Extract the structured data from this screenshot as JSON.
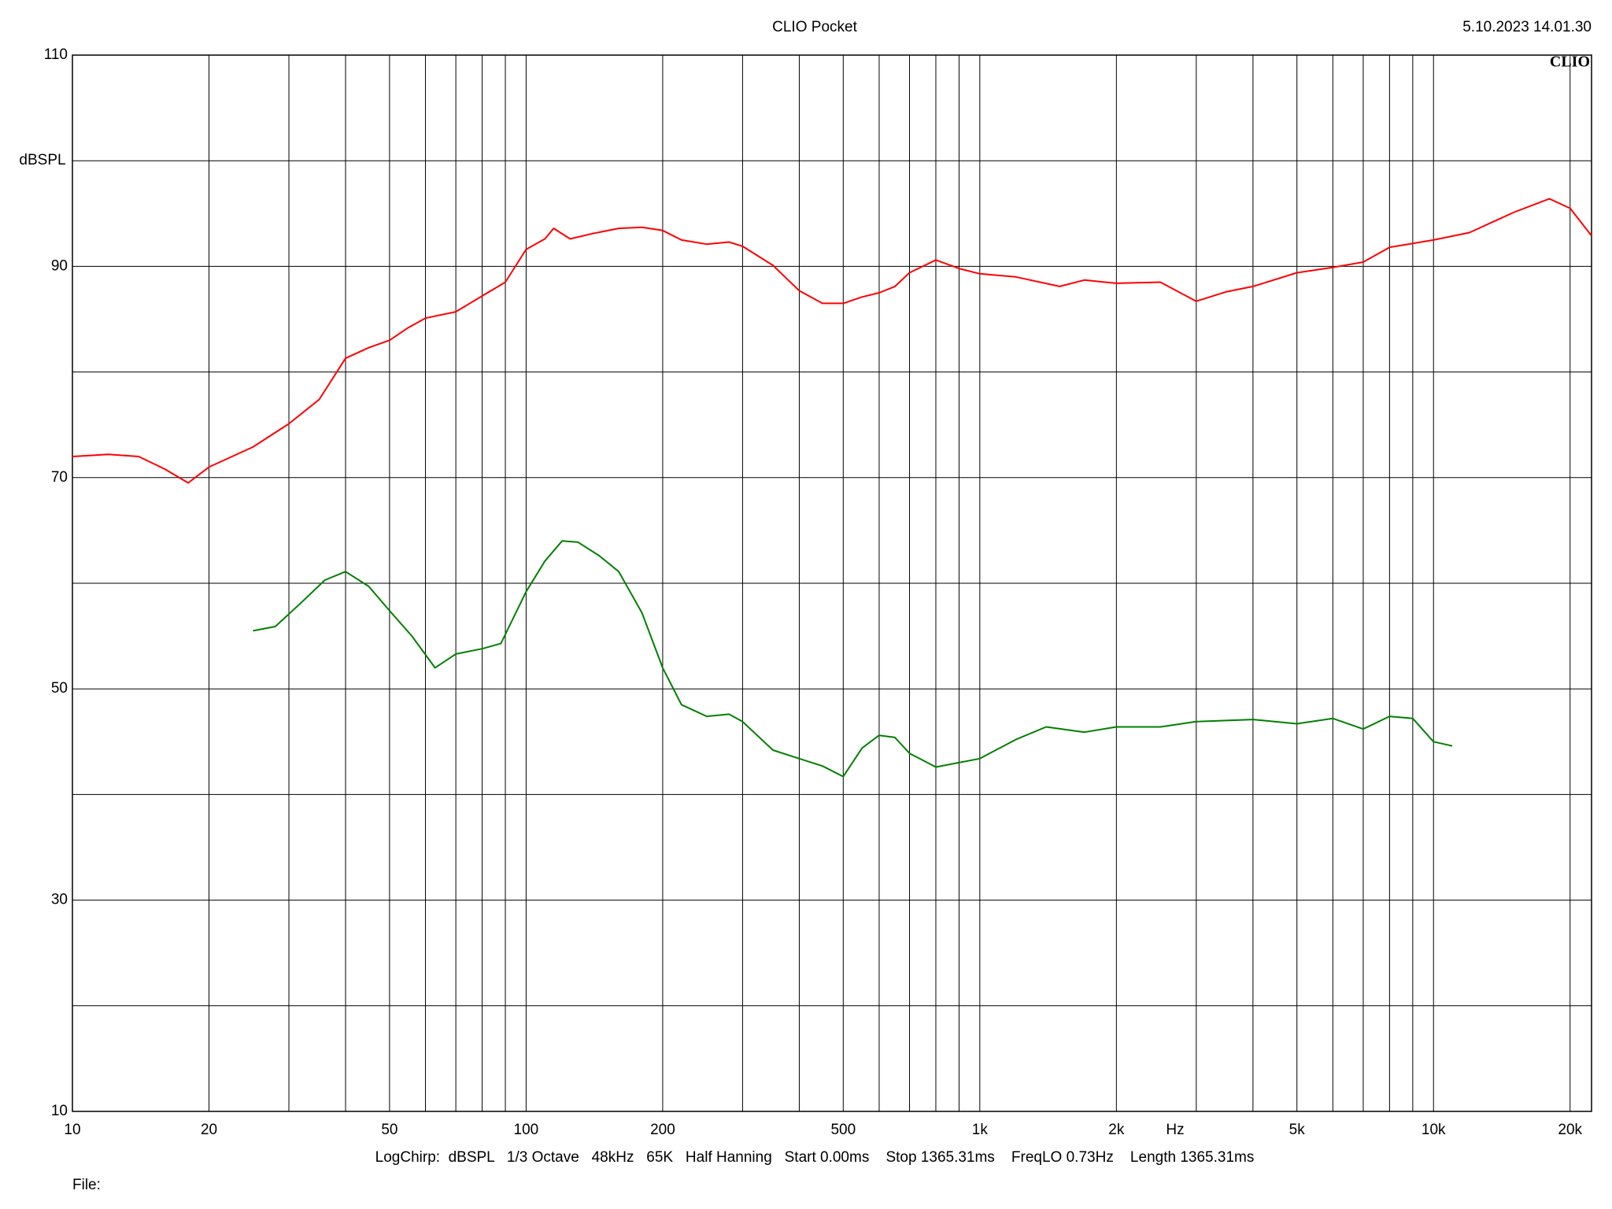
{
  "chart_data": {
    "type": "line",
    "title": "CLIO Pocket",
    "timestamp": "5.10.2023 14.01.30",
    "logo": "CLIO",
    "y_label": "dBSPL",
    "x_label": "Hz",
    "footer": "LogChirp:  dBSPL   1/3 Octave   48kHz   65K   Half Hanning   Start 0.00ms    Stop 1365.31ms    FreqLO 0.73Hz    Length 1365.31ms",
    "file_label": "File:",
    "xlog": true,
    "grid": true,
    "xlim": [
      10,
      22300
    ],
    "ylim": [
      10,
      110
    ],
    "xticks": [
      10,
      20,
      50,
      100,
      200,
      500,
      {
        "value": 1000,
        "label": "1k"
      },
      {
        "value": 2000,
        "label": "2k"
      },
      {
        "value": 5000,
        "label": "5k"
      },
      {
        "value": 10000,
        "label": "10k"
      },
      {
        "value": 20000,
        "label": "20k"
      }
    ],
    "x_minor_ticks": [
      30,
      40,
      60,
      70,
      80,
      90,
      300,
      400,
      600,
      700,
      800,
      900,
      3000,
      4000,
      6000,
      7000,
      8000,
      9000
    ],
    "yticks": [
      10,
      30,
      50,
      70,
      90,
      110
    ],
    "y_minor_ticks": [
      20,
      40,
      60,
      80,
      100
    ],
    "series": [
      {
        "color": "#ff0000",
        "x": [
          10,
          12,
          14,
          16,
          18,
          20,
          25,
          30,
          35,
          40,
          45,
          50,
          55,
          60,
          70,
          80,
          90,
          100,
          110,
          115,
          125,
          140,
          160,
          180,
          200,
          220,
          250,
          280,
          300,
          350,
          400,
          450,
          500,
          550,
          600,
          650,
          700,
          800,
          900,
          1000,
          1200,
          1500,
          1700,
          2000,
          2500,
          3000,
          3500,
          4000,
          5000,
          6000,
          7000,
          8000,
          10000,
          12000,
          15000,
          18000,
          20000,
          22300
        ],
        "values": [
          72.0,
          72.2,
          72.0,
          70.8,
          69.5,
          71.0,
          72.9,
          75.1,
          77.4,
          81.3,
          82.3,
          83.0,
          84.2,
          85.1,
          85.7,
          87.2,
          88.5,
          91.6,
          92.6,
          93.6,
          92.6,
          93.1,
          93.6,
          93.7,
          93.4,
          92.5,
          92.1,
          92.3,
          91.9,
          90.1,
          87.7,
          86.5,
          86.5,
          87.1,
          87.5,
          88.1,
          89.4,
          90.6,
          89.8,
          89.3,
          89.0,
          88.1,
          88.7,
          88.4,
          88.5,
          86.7,
          87.6,
          88.1,
          89.4,
          89.9,
          90.4,
          91.8,
          92.5,
          93.2,
          95.1,
          96.4,
          95.5,
          92.9
        ]
      },
      {
        "color": "#008000",
        "x": [
          25,
          28,
          32,
          36,
          40,
          45,
          50,
          56,
          63,
          70,
          80,
          88,
          100,
          110,
          120,
          130,
          145,
          160,
          180,
          200,
          220,
          250,
          280,
          300,
          350,
          400,
          450,
          500,
          550,
          600,
          650,
          700,
          800,
          1000,
          1200,
          1400,
          1700,
          2000,
          2500,
          3000,
          4000,
          5000,
          6000,
          7000,
          8000,
          9000,
          10000,
          11000
        ],
        "values": [
          55.5,
          55.9,
          58.2,
          60.3,
          61.1,
          59.7,
          57.4,
          55.0,
          52.0,
          53.3,
          53.8,
          54.3,
          59.2,
          62.1,
          64.0,
          63.9,
          62.6,
          61.1,
          57.2,
          52.0,
          48.5,
          47.4,
          47.6,
          46.9,
          44.2,
          43.4,
          42.7,
          41.7,
          44.4,
          45.6,
          45.4,
          43.9,
          42.6,
          43.4,
          45.2,
          46.4,
          45.9,
          46.4,
          46.4,
          46.9,
          47.1,
          46.7,
          47.2,
          46.2,
          47.4,
          47.2,
          45.0,
          44.6
        ]
      }
    ]
  }
}
